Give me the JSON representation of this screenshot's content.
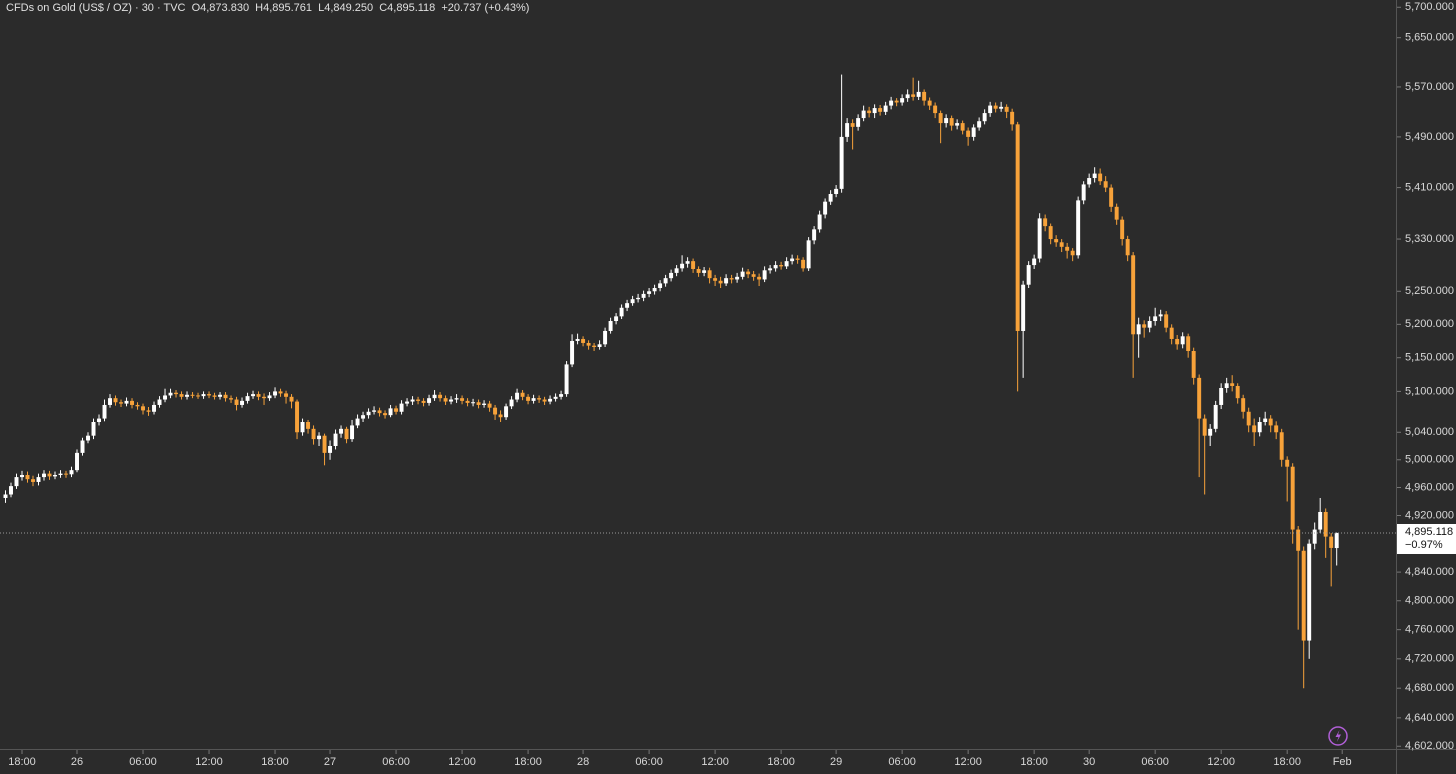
{
  "chart_data": {
    "type": "candlestick",
    "header": {
      "symbol": "CFDs on Gold (US$ / OZ) · 30 · TVC",
      "open": "O4,873.830",
      "high": "H4,895.761",
      "low": "L4,849.250",
      "close": "C4,895.118",
      "change": "+20.737 (+0.43%)"
    },
    "up_color": "#ffffff",
    "down_color": "#f7a23a",
    "log_scale": true,
    "grid": false,
    "xlim": [
      -1,
      252.6
    ],
    "ylim": [
      4597,
      5712
    ],
    "xticks": [
      {
        "value": 3,
        "label": "18:00"
      },
      {
        "value": 13,
        "label": "26"
      },
      {
        "value": 25,
        "label": "06:00"
      },
      {
        "value": 37,
        "label": "12:00"
      },
      {
        "value": 49,
        "label": "18:00"
      },
      {
        "value": 59,
        "label": "27"
      },
      {
        "value": 71,
        "label": "06:00"
      },
      {
        "value": 83,
        "label": "12:00"
      },
      {
        "value": 95,
        "label": "18:00"
      },
      {
        "value": 105,
        "label": "28"
      },
      {
        "value": 117,
        "label": "06:00"
      },
      {
        "value": 129,
        "label": "12:00"
      },
      {
        "value": 141,
        "label": "18:00"
      },
      {
        "value": 151,
        "label": "29"
      },
      {
        "value": 163,
        "label": "06:00"
      },
      {
        "value": 175,
        "label": "12:00"
      },
      {
        "value": 187,
        "label": "18:00"
      },
      {
        "value": 197,
        "label": "30"
      },
      {
        "value": 209,
        "label": "06:00"
      },
      {
        "value": 221,
        "label": "12:00"
      },
      {
        "value": 233,
        "label": "18:00"
      },
      {
        "value": 243,
        "label": "Feb"
      }
    ],
    "yticks": [
      {
        "value": 5700,
        "label": "5,700.000"
      },
      {
        "value": 5650,
        "label": "5,650.000"
      },
      {
        "value": 5570,
        "label": "5,570.000"
      },
      {
        "value": 5490,
        "label": "5,490.000"
      },
      {
        "value": 5410,
        "label": "5,410.000"
      },
      {
        "value": 5330,
        "label": "5,330.000"
      },
      {
        "value": 5250,
        "label": "5,250.000"
      },
      {
        "value": 5200,
        "label": "5,200.000"
      },
      {
        "value": 5150,
        "label": "5,150.000"
      },
      {
        "value": 5100,
        "label": "5,100.000"
      },
      {
        "value": 5040,
        "label": "5,040.000"
      },
      {
        "value": 5000,
        "label": "5,000.000"
      },
      {
        "value": 4960,
        "label": "4,960.000"
      },
      {
        "value": 4920,
        "label": "4,920.000"
      },
      {
        "value": 4840,
        "label": "4,840.000"
      },
      {
        "value": 4800,
        "label": "4,800.000"
      },
      {
        "value": 4760,
        "label": "4,760.000"
      },
      {
        "value": 4720,
        "label": "4,720.000"
      },
      {
        "value": 4680,
        "label": "4,680.000"
      },
      {
        "value": 4640,
        "label": "4,640.000"
      },
      {
        "value": 4602,
        "label": "4,602.000"
      }
    ],
    "last_price": {
      "value": 4895.118,
      "label": "4,895.118"
    },
    "change_label": "−0.97%",
    "open": [
      4945,
      4950,
      4962,
      4975,
      4978,
      4972,
      4968,
      4975,
      4980,
      4976,
      4978,
      4980,
      4979,
      4985,
      5010,
      5028,
      5035,
      5055,
      5060,
      5080,
      5090,
      5084,
      5082,
      5086,
      5080,
      5078,
      5072,
      5070,
      5080,
      5088,
      5094,
      5098,
      5096,
      5092,
      5095,
      5094,
      5093,
      5096,
      5094,
      5092,
      5095,
      5090,
      5088,
      5080,
      5086,
      5093,
      5096,
      5092,
      5090,
      5094,
      5100,
      5097,
      5092,
      5085,
      5040,
      5055,
      5045,
      5030,
      5035,
      5010,
      5020,
      5038,
      5045,
      5030,
      5050,
      5060,
      5065,
      5070,
      5072,
      5068,
      5065,
      5075,
      5070,
      5082,
      5085,
      5088,
      5086,
      5083,
      5090,
      5095,
      5090,
      5085,
      5088,
      5090,
      5086,
      5083,
      5084,
      5080,
      5082,
      5076,
      5066,
      5062,
      5078,
      5088,
      5098,
      5092,
      5086,
      5090,
      5088,
      5085,
      5089,
      5092,
      5096,
      5140,
      5175,
      5178,
      5172,
      5168,
      5166,
      5170,
      5190,
      5205,
      5212,
      5225,
      5232,
      5238,
      5240,
      5246,
      5250,
      5255,
      5262,
      5270,
      5278,
      5285,
      5292,
      5296,
      5284,
      5278,
      5282,
      5270,
      5266,
      5262,
      5270,
      5268,
      5272,
      5280,
      5276,
      5272,
      5268,
      5282,
      5285,
      5290,
      5288,
      5296,
      5300,
      5298,
      5285,
      5328,
      5345,
      5368,
      5388,
      5400,
      5408,
      5490,
      5512,
      5506,
      5520,
      5532,
      5528,
      5536,
      5530,
      5540,
      5548,
      5545,
      5552,
      5558,
      5554,
      5562,
      5548,
      5540,
      5528,
      5512,
      5520,
      5508,
      5512,
      5500,
      5490,
      5505,
      5515,
      5528,
      5540,
      5535,
      5538,
      5530,
      5510,
      5190,
      5260,
      5290,
      5300,
      5362,
      5350,
      5330,
      5325,
      5318,
      5312,
      5305,
      5390,
      5415,
      5425,
      5432,
      5420,
      5410,
      5380,
      5360,
      5330,
      5305,
      5185,
      5200,
      5195,
      5205,
      5212,
      5215,
      5195,
      5178,
      5170,
      5182,
      5160,
      5120,
      5060,
      5035,
      5045,
      5080,
      5105,
      5112,
      5108,
      5090,
      5070,
      5050,
      5040,
      5055,
      5060,
      5050,
      5040,
      5000,
      4990,
      4900,
      4870,
      4745,
      4880,
      4900,
      4925,
      4890,
      4873.83
    ],
    "high": [
      4956,
      4967,
      4980,
      4984,
      4983,
      4977,
      4980,
      4985,
      4984,
      4983,
      4985,
      4984,
      4990,
      5015,
      5032,
      5040,
      5060,
      5066,
      5088,
      5096,
      5094,
      5088,
      5091,
      5090,
      5084,
      5082,
      5077,
      5085,
      5093,
      5104,
      5104,
      5102,
      5100,
      5100,
      5099,
      5098,
      5100,
      5100,
      5098,
      5099,
      5099,
      5094,
      5092,
      5091,
      5098,
      5101,
      5100,
      5097,
      5099,
      5106,
      5104,
      5101,
      5096,
      5088,
      5060,
      5058,
      5050,
      5040,
      5038,
      5028,
      5044,
      5050,
      5048,
      5058,
      5066,
      5070,
      5075,
      5078,
      5076,
      5072,
      5080,
      5079,
      5087,
      5090,
      5093,
      5092,
      5090,
      5095,
      5102,
      5099,
      5094,
      5093,
      5096,
      5094,
      5090,
      5089,
      5088,
      5087,
      5086,
      5080,
      5072,
      5082,
      5093,
      5104,
      5102,
      5096,
      5095,
      5094,
      5092,
      5094,
      5097,
      5101,
      5145,
      5185,
      5186,
      5182,
      5176,
      5172,
      5176,
      5195,
      5210,
      5217,
      5230,
      5237,
      5243,
      5246,
      5251,
      5255,
      5260,
      5267,
      5275,
      5283,
      5290,
      5305,
      5302,
      5300,
      5288,
      5287,
      5286,
      5275,
      5272,
      5276,
      5275,
      5278,
      5286,
      5284,
      5281,
      5277,
      5288,
      5290,
      5296,
      5295,
      5302,
      5306,
      5305,
      5302,
      5333,
      5350,
      5374,
      5393,
      5406,
      5414,
      5590,
      5520,
      5518,
      5526,
      5540,
      5538,
      5542,
      5541,
      5546,
      5554,
      5552,
      5558,
      5566,
      5585,
      5580,
      5566,
      5553,
      5545,
      5532,
      5526,
      5524,
      5518,
      5516,
      5505,
      5510,
      5521,
      5534,
      5546,
      5545,
      5546,
      5542,
      5535,
      5514,
      5266,
      5296,
      5306,
      5370,
      5368,
      5354,
      5336,
      5330,
      5324,
      5316,
      5396,
      5420,
      5432,
      5442,
      5440,
      5428,
      5415,
      5385,
      5365,
      5335,
      5310,
      5210,
      5206,
      5212,
      5225,
      5222,
      5220,
      5200,
      5184,
      5188,
      5186,
      5165,
      5125,
      5066,
      5052,
      5086,
      5112,
      5120,
      5124,
      5112,
      5095,
      5076,
      5060,
      5062,
      5070,
      5065,
      5056,
      5045,
      5005,
      4995,
      4905,
      4876,
      4886,
      4910,
      4945,
      4930,
      4895,
      4895.761
    ],
    "low": [
      4938,
      4946,
      4958,
      4970,
      4967,
      4962,
      4963,
      4970,
      4971,
      4972,
      4974,
      4974,
      4975,
      4982,
      5006,
      5024,
      5030,
      5050,
      5056,
      5076,
      5079,
      5077,
      5078,
      5075,
      5073,
      5066,
      5064,
      5066,
      5076,
      5084,
      5090,
      5091,
      5088,
      5088,
      5090,
      5089,
      5089,
      5090,
      5088,
      5088,
      5085,
      5083,
      5072,
      5076,
      5082,
      5089,
      5087,
      5080,
      5086,
      5090,
      5092,
      5082,
      5075,
      5030,
      5035,
      5038,
      5022,
      5020,
      4992,
      5000,
      5015,
      5032,
      5024,
      5026,
      5046,
      5055,
      5060,
      5066,
      5063,
      5060,
      5062,
      5066,
      5066,
      5078,
      5080,
      5081,
      5078,
      5079,
      5086,
      5085,
      5080,
      5081,
      5083,
      5081,
      5078,
      5078,
      5075,
      5076,
      5070,
      5058,
      5055,
      5058,
      5074,
      5084,
      5087,
      5081,
      5082,
      5083,
      5080,
      5081,
      5085,
      5088,
      5092,
      5136,
      5170,
      5167,
      5162,
      5160,
      5162,
      5166,
      5186,
      5200,
      5208,
      5220,
      5228,
      5233,
      5235,
      5241,
      5245,
      5250,
      5257,
      5265,
      5273,
      5280,
      5286,
      5278,
      5272,
      5273,
      5262,
      5258,
      5255,
      5258,
      5262,
      5263,
      5268,
      5270,
      5266,
      5258,
      5264,
      5277,
      5280,
      5283,
      5284,
      5291,
      5292,
      5280,
      5281,
      5322,
      5340,
      5362,
      5383,
      5395,
      5402,
      5482,
      5470,
      5500,
      5515,
      5521,
      5520,
      5524,
      5525,
      5534,
      5539,
      5540,
      5546,
      5548,
      5549,
      5540,
      5533,
      5520,
      5480,
      5505,
      5500,
      5502,
      5494,
      5476,
      5484,
      5500,
      5510,
      5522,
      5529,
      5530,
      5520,
      5500,
      5100,
      5120,
      5255,
      5284,
      5294,
      5342,
      5322,
      5318,
      5310,
      5300,
      5296,
      5300,
      5384,
      5410,
      5418,
      5414,
      5403,
      5372,
      5352,
      5320,
      5296,
      5120,
      5150,
      5180,
      5188,
      5198,
      5205,
      5188,
      5170,
      5162,
      5164,
      5150,
      5110,
      4975,
      4950,
      5020,
      5040,
      5074,
      5098,
      5100,
      5082,
      5060,
      5040,
      5020,
      5034,
      5050,
      5040,
      5030,
      4990,
      4940,
      4880,
      4760,
      4680,
      4720,
      4872,
      4895,
      4860,
      4820,
      4849.25
    ],
    "close": [
      4950,
      4962,
      4975,
      4978,
      4972,
      4968,
      4975,
      4980,
      4976,
      4978,
      4980,
      4979,
      4985,
      5010,
      5028,
      5035,
      5055,
      5060,
      5080,
      5090,
      5084,
      5082,
      5086,
      5080,
      5078,
      5072,
      5070,
      5080,
      5088,
      5094,
      5098,
      5096,
      5092,
      5095,
      5094,
      5093,
      5096,
      5094,
      5092,
      5095,
      5090,
      5088,
      5080,
      5086,
      5093,
      5096,
      5092,
      5090,
      5094,
      5100,
      5097,
      5092,
      5085,
      5040,
      5055,
      5045,
      5030,
      5035,
      5010,
      5020,
      5038,
      5045,
      5030,
      5050,
      5060,
      5065,
      5070,
      5072,
      5068,
      5065,
      5075,
      5070,
      5082,
      5085,
      5088,
      5086,
      5083,
      5090,
      5095,
      5090,
      5085,
      5088,
      5090,
      5086,
      5083,
      5084,
      5080,
      5082,
      5076,
      5066,
      5062,
      5078,
      5088,
      5098,
      5092,
      5086,
      5090,
      5088,
      5085,
      5089,
      5092,
      5096,
      5140,
      5175,
      5178,
      5172,
      5168,
      5166,
      5170,
      5190,
      5205,
      5212,
      5225,
      5232,
      5238,
      5240,
      5246,
      5250,
      5255,
      5262,
      5270,
      5278,
      5285,
      5292,
      5296,
      5284,
      5278,
      5282,
      5270,
      5266,
      5262,
      5270,
      5268,
      5272,
      5280,
      5276,
      5272,
      5268,
      5282,
      5285,
      5290,
      5288,
      5296,
      5300,
      5298,
      5285,
      5328,
      5345,
      5368,
      5388,
      5400,
      5408,
      5490,
      5512,
      5506,
      5520,
      5532,
      5528,
      5536,
      5530,
      5540,
      5548,
      5545,
      5552,
      5558,
      5554,
      5562,
      5548,
      5540,
      5528,
      5512,
      5520,
      5508,
      5512,
      5500,
      5490,
      5505,
      5515,
      5528,
      5540,
      5535,
      5538,
      5530,
      5510,
      5190,
      5260,
      5290,
      5300,
      5362,
      5350,
      5330,
      5325,
      5318,
      5312,
      5305,
      5390,
      5415,
      5425,
      5432,
      5420,
      5410,
      5380,
      5360,
      5330,
      5305,
      5185,
      5200,
      5195,
      5205,
      5212,
      5215,
      5195,
      5178,
      5170,
      5182,
      5160,
      5120,
      5060,
      5035,
      5045,
      5080,
      5105,
      5112,
      5108,
      5090,
      5070,
      5050,
      5040,
      5055,
      5060,
      5050,
      5040,
      5000,
      4990,
      4900,
      4870,
      4745,
      4880,
      4900,
      4925,
      4890,
      4874,
      4895.118
    ]
  }
}
